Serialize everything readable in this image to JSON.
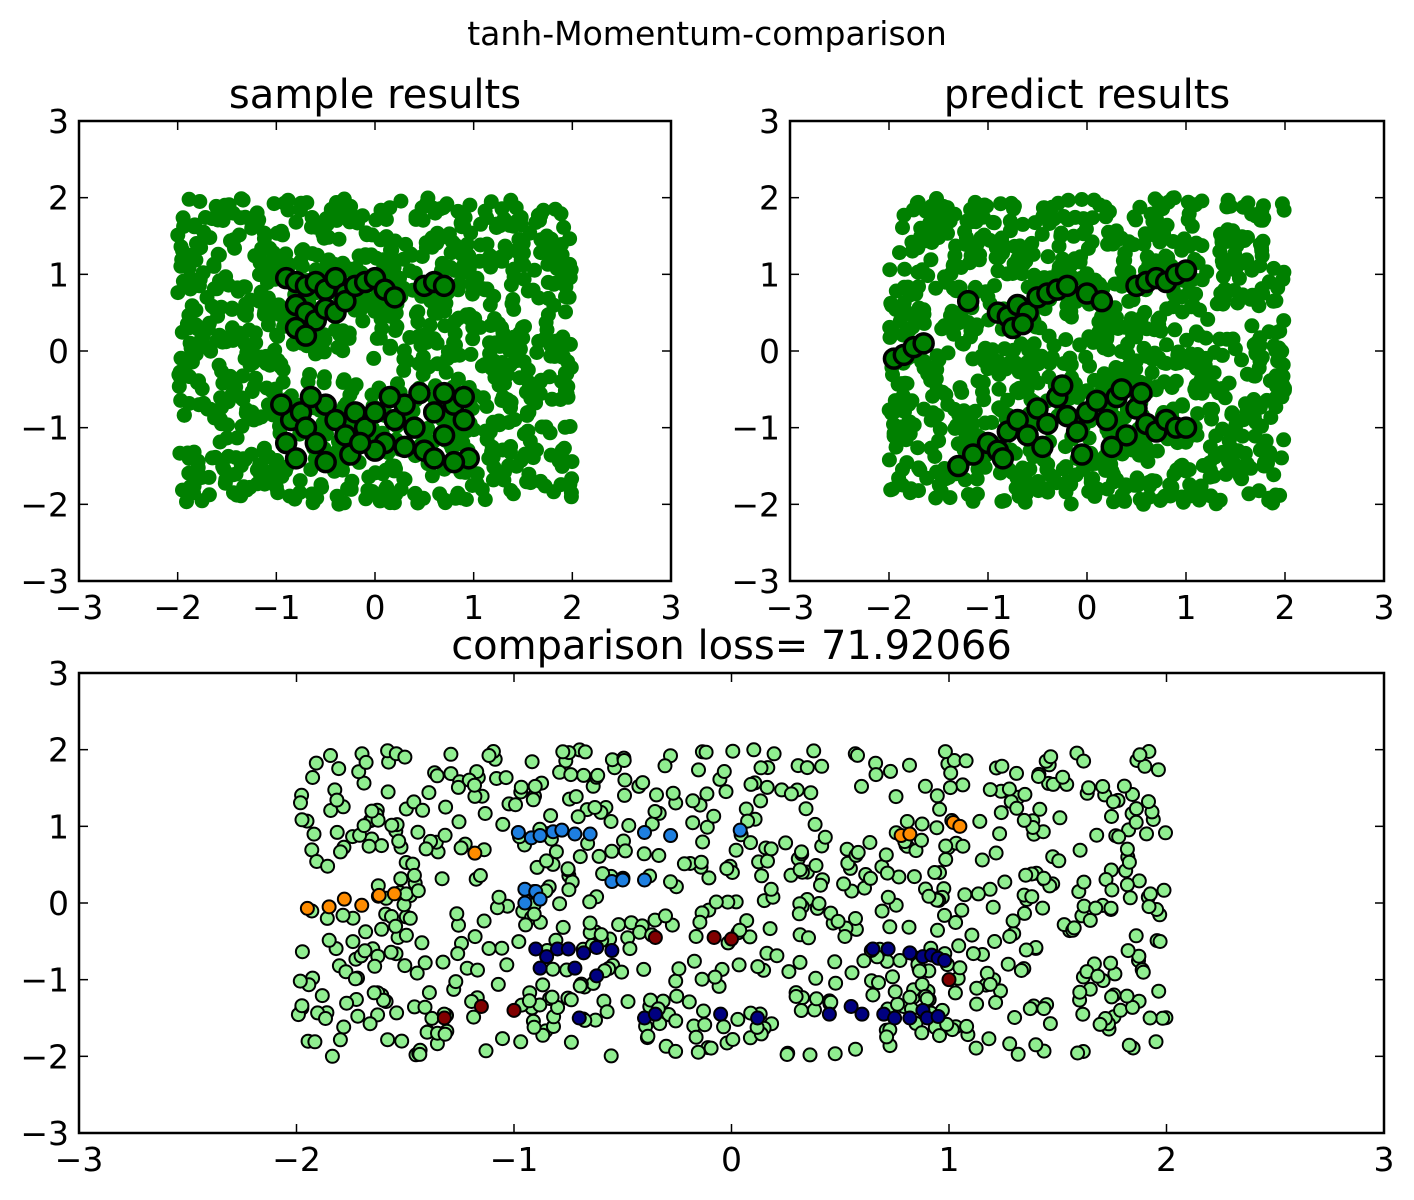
{
  "figure": {
    "suptitle": "tanh-Momentum-comparison"
  },
  "colors": {
    "green": "#008000",
    "light_green": "#90ee90",
    "outline": "#000000",
    "black_fill": "#000000",
    "orange": "#ff8c00",
    "blue": "#1e7fe0",
    "navy": "#000080",
    "dark_red": "#800000"
  },
  "chart_data": [
    {
      "id": "sample",
      "type": "scatter",
      "title": "sample results",
      "xlabel": "",
      "ylabel": "",
      "xlim": [
        -3,
        3
      ],
      "ylim": [
        -3,
        3
      ],
      "xticks": [
        "−3",
        "−2",
        "−1",
        "0",
        "1",
        "2",
        "3"
      ],
      "yticks": [
        "3",
        "2",
        "1",
        "0",
        "−1",
        "−2",
        "−3"
      ],
      "grid": false,
      "background_points": {
        "description_color": "green",
        "x_range": [
          -2,
          2
        ],
        "y_range": [
          -2,
          2
        ],
        "count": 1000
      },
      "class_1_points": [
        [
          -0.9,
          0.95
        ],
        [
          -0.8,
          0.9
        ],
        [
          -0.7,
          0.85
        ],
        [
          -0.6,
          0.9
        ],
        [
          -0.5,
          0.8
        ],
        [
          -0.4,
          0.95
        ],
        [
          -0.3,
          0.75
        ],
        [
          -0.8,
          0.6
        ],
        [
          -0.7,
          0.5
        ],
        [
          -0.6,
          0.4
        ],
        [
          -0.5,
          0.55
        ],
        [
          -0.8,
          0.3
        ],
        [
          -0.7,
          0.2
        ],
        [
          -0.4,
          0.5
        ],
        [
          -0.3,
          0.65
        ],
        [
          -0.2,
          0.85
        ],
        [
          -0.1,
          0.9
        ],
        [
          0.0,
          0.95
        ],
        [
          0.1,
          0.8
        ],
        [
          0.2,
          0.7
        ],
        [
          0.5,
          0.85
        ],
        [
          0.6,
          0.9
        ],
        [
          0.7,
          0.85
        ],
        [
          -0.9,
          -1.2
        ],
        [
          -0.85,
          -0.9
        ],
        [
          -0.75,
          -0.8
        ],
        [
          -0.7,
          -1.0
        ],
        [
          -0.6,
          -1.2
        ],
        [
          -0.5,
          -0.7
        ],
        [
          -0.4,
          -0.9
        ],
        [
          -0.3,
          -1.1
        ],
        [
          -0.2,
          -0.8
        ],
        [
          -0.1,
          -1.0
        ],
        [
          0.0,
          -0.8
        ],
        [
          0.1,
          -1.2
        ],
        [
          0.2,
          -0.9
        ],
        [
          0.3,
          -0.7
        ],
        [
          0.4,
          -1.0
        ],
        [
          0.5,
          -1.3
        ],
        [
          0.6,
          -0.8
        ],
        [
          0.7,
          -1.1
        ],
        [
          0.8,
          -0.7
        ],
        [
          0.9,
          -0.9
        ],
        [
          0.95,
          -1.4
        ],
        [
          -0.8,
          -1.4
        ],
        [
          -0.5,
          -1.45
        ],
        [
          0.0,
          -1.3
        ],
        [
          0.3,
          -1.25
        ],
        [
          0.6,
          -1.4
        ],
        [
          0.8,
          -1.45
        ],
        [
          -0.95,
          -0.7
        ],
        [
          -0.65,
          -0.6
        ],
        [
          -0.25,
          -1.35
        ],
        [
          0.15,
          -0.6
        ],
        [
          0.45,
          -0.55
        ],
        [
          0.7,
          -0.55
        ],
        [
          0.9,
          -0.6
        ],
        [
          -0.15,
          -1.2
        ]
      ]
    },
    {
      "id": "predict",
      "type": "scatter",
      "title": "predict results",
      "xlabel": "",
      "ylabel": "",
      "xlim": [
        -3,
        3
      ],
      "ylim": [
        -3,
        3
      ],
      "xticks": [
        "−3",
        "−2",
        "−1",
        "0",
        "1",
        "2",
        "3"
      ],
      "yticks": [
        "3",
        "2",
        "1",
        "0",
        "−1",
        "−2",
        "−3"
      ],
      "grid": false,
      "background_points": {
        "description_color": "green",
        "x_range": [
          -2,
          2
        ],
        "y_range": [
          -2,
          2
        ],
        "count": 1000
      },
      "class_1_points": [
        [
          -1.95,
          -0.1
        ],
        [
          -1.85,
          -0.05
        ],
        [
          -1.75,
          0.05
        ],
        [
          -1.65,
          0.1
        ],
        [
          -1.2,
          0.65
        ],
        [
          -0.9,
          0.5
        ],
        [
          -0.8,
          0.45
        ],
        [
          -0.7,
          0.6
        ],
        [
          -0.6,
          0.5
        ],
        [
          -0.5,
          0.7
        ],
        [
          -0.4,
          0.75
        ],
        [
          -0.3,
          0.8
        ],
        [
          -0.2,
          0.85
        ],
        [
          0.0,
          0.75
        ],
        [
          0.15,
          0.65
        ],
        [
          0.5,
          0.85
        ],
        [
          0.6,
          0.9
        ],
        [
          0.7,
          0.95
        ],
        [
          0.8,
          0.9
        ],
        [
          0.9,
          1.0
        ],
        [
          1.0,
          1.05
        ],
        [
          -0.75,
          0.3
        ],
        [
          -0.65,
          0.35
        ],
        [
          -1.3,
          -1.5
        ],
        [
          -1.15,
          -1.35
        ],
        [
          -1.0,
          -1.2
        ],
        [
          -0.9,
          -1.3
        ],
        [
          -0.8,
          -1.05
        ],
        [
          -0.7,
          -0.9
        ],
        [
          -0.6,
          -1.1
        ],
        [
          -0.5,
          -0.75
        ],
        [
          -0.4,
          -0.95
        ],
        [
          -0.3,
          -0.6
        ],
        [
          -0.2,
          -0.85
        ],
        [
          -0.1,
          -1.05
        ],
        [
          0.0,
          -0.8
        ],
        [
          0.1,
          -0.65
        ],
        [
          0.2,
          -0.9
        ],
        [
          0.3,
          -0.6
        ],
        [
          0.4,
          -1.1
        ],
        [
          0.5,
          -0.75
        ],
        [
          0.6,
          -0.95
        ],
        [
          0.7,
          -1.05
        ],
        [
          0.8,
          -0.9
        ],
        [
          0.9,
          -1.0
        ],
        [
          1.0,
          -1.0
        ],
        [
          -0.05,
          -1.35
        ],
        [
          0.25,
          -1.25
        ],
        [
          -0.45,
          -1.25
        ],
        [
          -0.85,
          -1.4
        ],
        [
          0.55,
          -0.55
        ],
        [
          -0.25,
          -0.45
        ],
        [
          0.35,
          -0.5
        ]
      ]
    },
    {
      "id": "comparison",
      "type": "scatter",
      "title": "comparison loss= 71.92066",
      "xlabel": "",
      "ylabel": "",
      "xlim": [
        -3,
        3
      ],
      "ylim": [
        -3,
        3
      ],
      "xticks": [
        "−3",
        "−2",
        "−1",
        "0",
        "1",
        "2",
        "3"
      ],
      "yticks": [
        "3",
        "2",
        "1",
        "0",
        "−1",
        "−2",
        "−3"
      ],
      "grid": false,
      "background_points": {
        "description_color": "light_green",
        "x_range": [
          -2,
          2
        ],
        "y_range": [
          -2,
          2
        ],
        "count": 800
      },
      "orange_points": [
        [
          -1.95,
          -0.07
        ],
        [
          -1.85,
          -0.05
        ],
        [
          -1.78,
          0.05
        ],
        [
          -1.7,
          -0.03
        ],
        [
          -1.62,
          0.1
        ],
        [
          -1.55,
          0.12
        ],
        [
          -1.18,
          0.65
        ],
        [
          0.78,
          0.88
        ],
        [
          0.82,
          0.9
        ],
        [
          1.02,
          1.05
        ],
        [
          1.05,
          1.0
        ]
      ],
      "blue_points": [
        [
          -0.98,
          0.92
        ],
        [
          -0.92,
          0.85
        ],
        [
          -0.88,
          0.88
        ],
        [
          -0.82,
          0.93
        ],
        [
          -0.78,
          0.95
        ],
        [
          -0.72,
          0.9
        ],
        [
          -0.65,
          0.9
        ],
        [
          -0.4,
          0.92
        ],
        [
          -0.28,
          0.88
        ],
        [
          0.04,
          0.95
        ],
        [
          -0.55,
          0.28
        ],
        [
          -0.5,
          0.3
        ],
        [
          -0.4,
          0.3
        ],
        [
          -0.95,
          0.18
        ],
        [
          -0.9,
          0.15
        ],
        [
          -0.88,
          0.05
        ],
        [
          -0.95,
          0.0
        ]
      ],
      "navy_points": [
        [
          -0.9,
          -0.6
        ],
        [
          -0.85,
          -0.7
        ],
        [
          -0.8,
          -0.6
        ],
        [
          -0.75,
          -0.6
        ],
        [
          -0.68,
          -0.65
        ],
        [
          -0.62,
          -0.58
        ],
        [
          -0.55,
          -0.62
        ],
        [
          -0.88,
          -0.85
        ],
        [
          -0.72,
          -0.85
        ],
        [
          -0.62,
          -0.95
        ],
        [
          0.65,
          -0.6
        ],
        [
          0.72,
          -0.6
        ],
        [
          0.82,
          -0.65
        ],
        [
          0.88,
          -0.7
        ],
        [
          0.92,
          -0.68
        ],
        [
          0.95,
          -0.72
        ],
        [
          0.98,
          -0.75
        ],
        [
          0.55,
          -1.35
        ],
        [
          0.6,
          -1.45
        ],
        [
          0.7,
          -1.45
        ],
        [
          0.75,
          -1.5
        ],
        [
          0.82,
          -1.5
        ],
        [
          0.88,
          -1.4
        ],
        [
          0.9,
          -1.5
        ],
        [
          0.95,
          -1.48
        ],
        [
          0.45,
          -1.45
        ],
        [
          0.12,
          -1.5
        ],
        [
          -0.05,
          -1.45
        ],
        [
          -0.4,
          -1.5
        ],
        [
          -0.35,
          -1.45
        ],
        [
          -0.7,
          -1.5
        ]
      ],
      "dark_red_points": [
        [
          -1.32,
          -1.5
        ],
        [
          -1.15,
          -1.35
        ],
        [
          -1.0,
          -1.4
        ],
        [
          -0.35,
          -0.45
        ],
        [
          -0.08,
          -0.45
        ],
        [
          0.0,
          -0.47
        ],
        [
          1.0,
          -1.0
        ]
      ]
    }
  ]
}
